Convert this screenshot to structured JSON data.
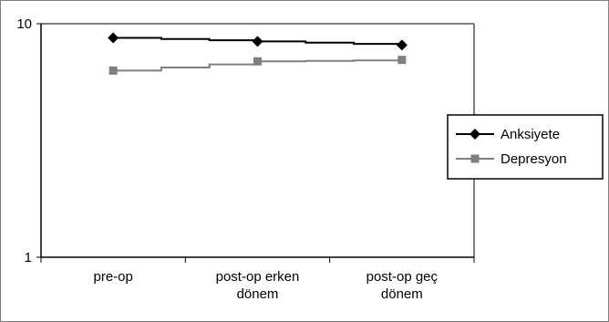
{
  "chart_data": {
    "type": "line",
    "categories": [
      [
        "pre-op"
      ],
      [
        "post-op erken",
        "dönem"
      ],
      [
        "post-op geç",
        "dönem"
      ]
    ],
    "y_scale": "log",
    "ylim": [
      1,
      10
    ],
    "yticks": [
      "1",
      "10"
    ],
    "grid": false,
    "legend_position": "right",
    "series": [
      {
        "name": "Anksiyete",
        "values": [
          8.7,
          8.4,
          8.1
        ],
        "color": "#000000",
        "marker": "diamond"
      },
      {
        "name": "Depresyon",
        "values": [
          6.3,
          6.9,
          7.0
        ],
        "color": "#808080",
        "marker": "square"
      }
    ]
  }
}
